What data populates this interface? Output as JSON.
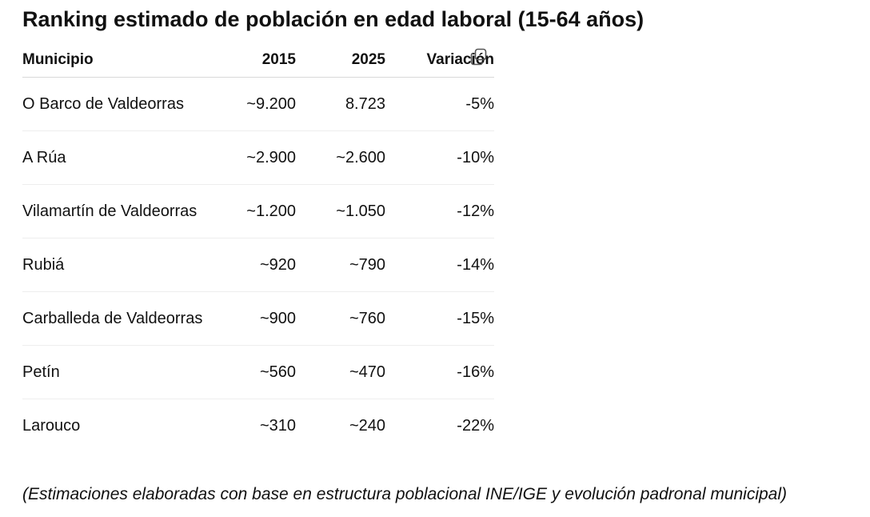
{
  "title": "Ranking estimado de población en edad laboral (15-64 años)",
  "table": {
    "headers": {
      "municipio": "Municipio",
      "y2015": "2015",
      "y2025": "2025",
      "variacion": "Variación"
    },
    "rows": [
      {
        "municipio": "O Barco de Valdeorras",
        "y2015": "~9.200",
        "y2025": "8.723",
        "variacion": "-5%"
      },
      {
        "municipio": "A Rúa",
        "y2015": "~2.900",
        "y2025": "~2.600",
        "variacion": "-10%"
      },
      {
        "municipio": "Vilamartín de Valdeorras",
        "y2015": "~1.200",
        "y2025": "~1.050",
        "variacion": "-12%"
      },
      {
        "municipio": "Rubiá",
        "y2015": "~920",
        "y2025": "~790",
        "variacion": "-14%"
      },
      {
        "municipio": "Carballeda de Valdeorras",
        "y2015": "~900",
        "y2025": "~760",
        "variacion": "-15%"
      },
      {
        "municipio": "Petín",
        "y2015": "~560",
        "y2025": "~470",
        "variacion": "-16%"
      },
      {
        "municipio": "Larouco",
        "y2015": "~310",
        "y2025": "~240",
        "variacion": "-22%"
      }
    ]
  },
  "footnote": "(Estimaciones elaboradas con base en estructura poblacional INE/IGE y evolución padronal municipal)",
  "icons": {
    "copy": "copy-icon"
  }
}
